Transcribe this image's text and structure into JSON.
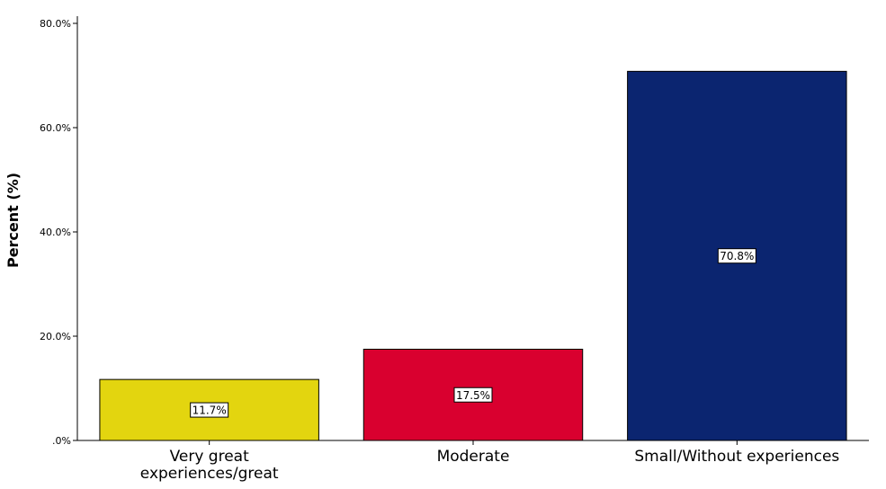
{
  "chart_data": {
    "type": "bar",
    "ylabel": "Percent (%)",
    "xlabel": "",
    "ylim": [
      0,
      80
    ],
    "yticks": [
      0,
      20,
      40,
      60,
      80
    ],
    "ytick_labels": [
      ".0%",
      "20.0%",
      "40.0%",
      "60.0%",
      "80.0%"
    ],
    "categories": [
      "Very great experiences/great",
      "Moderate",
      "Small/Without experiences"
    ],
    "category_lines": [
      [
        "Very great",
        "experiences/great"
      ],
      [
        "Moderate"
      ],
      [
        "Small/Without experiences"
      ]
    ],
    "values": [
      11.7,
      17.5,
      70.8
    ],
    "data_labels": [
      "11.7%",
      "17.5%",
      "70.8%"
    ],
    "colors": [
      "#e3d50f",
      "#d9002f",
      "#0b2570"
    ],
    "grid": false,
    "legend": "none"
  }
}
